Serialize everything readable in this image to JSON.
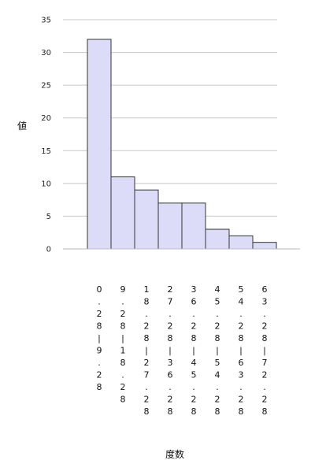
{
  "chart_data": {
    "type": "bar",
    "title": "",
    "xlabel": "度数",
    "ylabel": "値",
    "ylim": [
      0,
      35
    ],
    "yticks": [
      0,
      5,
      10,
      15,
      20,
      25,
      30,
      35
    ],
    "grid": true,
    "legend": "none",
    "bar_color": "#dcdcf8",
    "categories": [
      "0.28|9.28",
      "9.28|18.28",
      "18.28|27.28",
      "27.28|36.28",
      "36.28|45.28",
      "45.28|54.28",
      "54.28|63.28",
      "63.28|72.28"
    ],
    "values": [
      32,
      11,
      9,
      7,
      7,
      3,
      2,
      1
    ]
  }
}
